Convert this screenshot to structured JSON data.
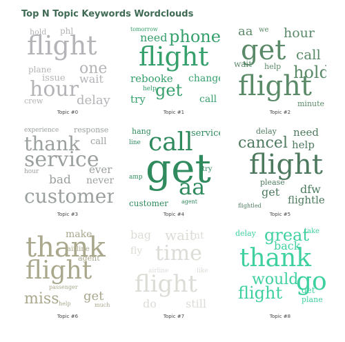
{
  "chart_data": {
    "type": "wordcloud",
    "title": "Top N Topic Keywords Wordclouds",
    "topics": [
      {
        "label": "Topic #0",
        "color": "#b4b4b8",
        "words": [
          "hold",
          "phl",
          "flight",
          "one",
          "plane",
          "issue",
          "wait",
          "hour",
          "crew",
          "delay"
        ]
      },
      {
        "label": "Topic #1",
        "color": "#35a06c",
        "words": [
          "tomorrow",
          "need",
          "phone",
          "flight",
          "rebooke",
          "change",
          "help",
          "get",
          "try",
          "call"
        ]
      },
      {
        "label": "Topic #2",
        "color": "#5b8a69",
        "words": [
          "aa",
          "we",
          "hour",
          "get",
          "call",
          "wait",
          "help",
          "hold",
          "flight",
          "minute"
        ]
      },
      {
        "label": "Topic #3",
        "color": "#9aa09e",
        "words": [
          "experience",
          "response",
          "thank",
          "call",
          "service",
          "hour",
          "ever",
          "bad",
          "never",
          "customer"
        ]
      },
      {
        "label": "Topic #4",
        "color": "#2f8a5e",
        "words": [
          "hang",
          "line",
          "call",
          "service",
          "get",
          "try",
          "amp",
          "aa",
          "customer",
          "agent"
        ]
      },
      {
        "label": "Topic #5",
        "color": "#4d7a5e",
        "words": [
          "delay",
          "need",
          "cancel",
          "help",
          "flight",
          "please",
          "get",
          "dfw",
          "flightled",
          "flightle"
        ]
      },
      {
        "label": "Topic #6",
        "color": "#a9a78c",
        "words": [
          "make",
          "thank",
          "airline",
          "agent",
          "flight",
          "passenger",
          "miss",
          "get",
          "help",
          "much"
        ]
      },
      {
        "label": "Topic #7",
        "color": "#dcdcd6",
        "words": [
          "bag",
          "wait",
          "nt",
          "fly",
          "time",
          "airline",
          "like",
          "flight",
          "do",
          "still"
        ]
      },
      {
        "label": "Topic #8",
        "color": "#3fd0a0",
        "words": [
          "delay",
          "great",
          "take",
          "back",
          "thank",
          "would",
          "go",
          "flight",
          "get",
          "plane"
        ]
      }
    ]
  }
}
